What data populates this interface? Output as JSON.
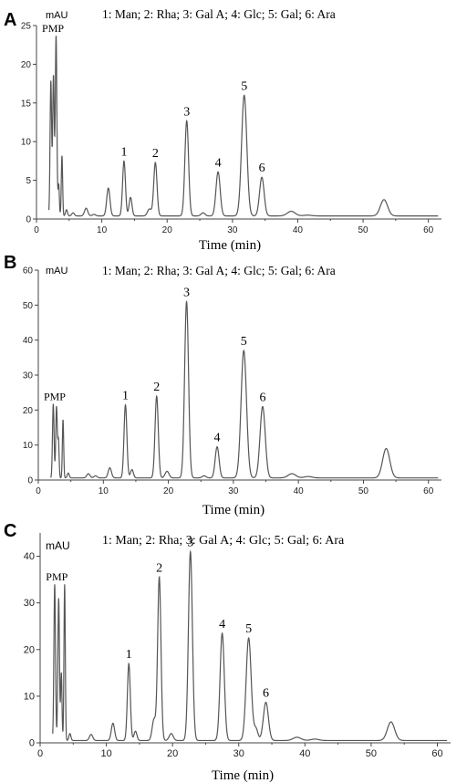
{
  "chart_data": [
    {
      "type": "line",
      "panel_label": "A",
      "ylabel": "mAU",
      "xlabel": "Time (min)",
      "legend_text": "1: Man; 2: Rha; 3: Gal A; 4: Glc; 5: Gal; 6: Ara",
      "xlim": [
        0,
        62
      ],
      "ylim": [
        0,
        25
      ],
      "x_ticks": [
        "0",
        "10",
        "20",
        "30",
        "40",
        "50",
        "60"
      ],
      "y_ticks": [
        "0",
        "5",
        "10",
        "15",
        "20",
        "25"
      ],
      "annotations": [
        {
          "text": "PMP",
          "x": 2.8,
          "y": 23.7
        },
        {
          "text": "1",
          "x": 13.4,
          "y": 7.5
        },
        {
          "text": "2",
          "x": 18.2,
          "y": 7.3
        },
        {
          "text": "3",
          "x": 23.0,
          "y": 12.7
        },
        {
          "text": "4",
          "x": 27.8,
          "y": 6.1
        },
        {
          "text": "5",
          "x": 31.8,
          "y": 16.0
        },
        {
          "text": "6",
          "x": 34.5,
          "y": 5.4
        }
      ],
      "series": [
        {
          "baseline": 0.4,
          "peaks": [
            {
              "x": 2.2,
              "y": 17.8,
              "w": 0.12
            },
            {
              "x": 2.6,
              "y": 18.5,
              "w": 0.12
            },
            {
              "x": 3.0,
              "y": 23.7,
              "w": 0.12
            },
            {
              "x": 3.4,
              "y": 4.5,
              "w": 0.1
            },
            {
              "x": 3.9,
              "y": 8.2,
              "w": 0.1
            },
            {
              "x": 4.6,
              "y": 1.2,
              "w": 0.15
            },
            {
              "x": 5.6,
              "y": 0.8,
              "w": 0.2
            },
            {
              "x": 7.6,
              "y": 1.4,
              "w": 0.25
            },
            {
              "x": 8.8,
              "y": 0.6,
              "w": 0.25
            },
            {
              "x": 11.0,
              "y": 4.0,
              "w": 0.25
            },
            {
              "x": 13.4,
              "y": 7.5,
              "w": 0.22
            },
            {
              "x": 14.4,
              "y": 2.8,
              "w": 0.22
            },
            {
              "x": 17.3,
              "y": 1.3,
              "w": 0.3
            },
            {
              "x": 18.2,
              "y": 7.3,
              "w": 0.25
            },
            {
              "x": 23.0,
              "y": 12.7,
              "w": 0.28
            },
            {
              "x": 25.5,
              "y": 0.8,
              "w": 0.3
            },
            {
              "x": 27.8,
              "y": 6.1,
              "w": 0.32
            },
            {
              "x": 31.8,
              "y": 16.0,
              "w": 0.4
            },
            {
              "x": 34.5,
              "y": 5.4,
              "w": 0.35
            },
            {
              "x": 39.0,
              "y": 1.0,
              "w": 0.6
            },
            {
              "x": 41.5,
              "y": 0.5,
              "w": 0.6
            },
            {
              "x": 53.2,
              "y": 2.5,
              "w": 0.55
            }
          ]
        }
      ]
    },
    {
      "type": "line",
      "panel_label": "B",
      "ylabel": "mAU",
      "xlabel": "Time (min)",
      "legend_text": "1: Man; 2: Rha; 3: Gal A; 4: Glc; 5: Gal; 6: Ara",
      "xlim": [
        0,
        62
      ],
      "ylim": [
        0,
        60
      ],
      "x_ticks": [
        "0",
        "10",
        "20",
        "30",
        "40",
        "50",
        "60"
      ],
      "y_ticks": [
        "0",
        "10",
        "20",
        "30",
        "40",
        "50",
        "60"
      ],
      "annotations": [
        {
          "text": "PMP",
          "x": 2.8,
          "y": 21.8
        },
        {
          "text": "1",
          "x": 13.4,
          "y": 21.5
        },
        {
          "text": "2",
          "x": 18.2,
          "y": 24.0
        },
        {
          "text": "3",
          "x": 22.8,
          "y": 51.0
        },
        {
          "text": "4",
          "x": 27.5,
          "y": 9.5
        },
        {
          "text": "5",
          "x": 31.6,
          "y": 37.0
        },
        {
          "text": "6",
          "x": 34.5,
          "y": 21.0
        }
      ],
      "series": [
        {
          "baseline": 0.6,
          "peaks": [
            {
              "x": 2.3,
              "y": 21.8,
              "w": 0.12
            },
            {
              "x": 2.8,
              "y": 21.0,
              "w": 0.12
            },
            {
              "x": 3.1,
              "y": 11.0,
              "w": 0.1
            },
            {
              "x": 3.8,
              "y": 17.3,
              "w": 0.1
            },
            {
              "x": 4.6,
              "y": 2.0,
              "w": 0.15
            },
            {
              "x": 7.7,
              "y": 1.8,
              "w": 0.25
            },
            {
              "x": 8.8,
              "y": 1.2,
              "w": 0.25
            },
            {
              "x": 11.0,
              "y": 3.5,
              "w": 0.25
            },
            {
              "x": 13.4,
              "y": 21.5,
              "w": 0.22
            },
            {
              "x": 14.4,
              "y": 3.0,
              "w": 0.22
            },
            {
              "x": 18.2,
              "y": 24.0,
              "w": 0.25
            },
            {
              "x": 19.8,
              "y": 2.5,
              "w": 0.3
            },
            {
              "x": 22.8,
              "y": 51.0,
              "w": 0.3
            },
            {
              "x": 25.5,
              "y": 1.2,
              "w": 0.3
            },
            {
              "x": 27.5,
              "y": 9.5,
              "w": 0.3
            },
            {
              "x": 31.6,
              "y": 37.0,
              "w": 0.42
            },
            {
              "x": 34.5,
              "y": 21.0,
              "w": 0.4
            },
            {
              "x": 39.0,
              "y": 1.8,
              "w": 0.6
            },
            {
              "x": 41.5,
              "y": 1.0,
              "w": 0.6
            },
            {
              "x": 53.5,
              "y": 9.0,
              "w": 0.55
            }
          ]
        }
      ]
    },
    {
      "type": "line",
      "panel_label": "C",
      "ylabel": "mAU",
      "xlabel": "Time (min)",
      "legend_text": "1: Man; 2: Rha; 3: Gal A; 4: Glc; 5: Gal; 6: Ara",
      "xlim": [
        0,
        62
      ],
      "ylim": [
        0,
        45
      ],
      "x_ticks": [
        "0",
        "10",
        "20",
        "30",
        "40",
        "50",
        "60"
      ],
      "y_ticks": [
        "0",
        "10",
        "20",
        "30",
        "40"
      ],
      "annotations": [
        {
          "text": "PMP",
          "x": 2.8,
          "y": 34.0
        },
        {
          "text": "1",
          "x": 13.4,
          "y": 17.0
        },
        {
          "text": "2",
          "x": 18.0,
          "y": 35.5
        },
        {
          "text": "3",
          "x": 22.7,
          "y": 41.0
        },
        {
          "text": "4",
          "x": 27.5,
          "y": 23.5
        },
        {
          "text": "5",
          "x": 31.5,
          "y": 22.5
        },
        {
          "text": "6",
          "x": 34.1,
          "y": 8.7
        }
      ],
      "series": [
        {
          "baseline": 0.5,
          "peaks": [
            {
              "x": 2.2,
              "y": 34.0,
              "w": 0.12
            },
            {
              "x": 2.8,
              "y": 31.0,
              "w": 0.12
            },
            {
              "x": 3.2,
              "y": 15.0,
              "w": 0.1
            },
            {
              "x": 3.7,
              "y": 34.0,
              "w": 0.1
            },
            {
              "x": 4.5,
              "y": 2.0,
              "w": 0.15
            },
            {
              "x": 7.7,
              "y": 1.8,
              "w": 0.25
            },
            {
              "x": 11.0,
              "y": 4.2,
              "w": 0.25
            },
            {
              "x": 13.4,
              "y": 17.0,
              "w": 0.22
            },
            {
              "x": 14.4,
              "y": 2.5,
              "w": 0.22
            },
            {
              "x": 17.2,
              "y": 5.0,
              "w": 0.28
            },
            {
              "x": 18.0,
              "y": 35.5,
              "w": 0.25
            },
            {
              "x": 19.8,
              "y": 2.0,
              "w": 0.3
            },
            {
              "x": 22.7,
              "y": 41.0,
              "w": 0.3
            },
            {
              "x": 27.5,
              "y": 23.5,
              "w": 0.32
            },
            {
              "x": 31.5,
              "y": 22.5,
              "w": 0.38
            },
            {
              "x": 32.6,
              "y": 3.0,
              "w": 0.3
            },
            {
              "x": 34.1,
              "y": 8.7,
              "w": 0.38
            },
            {
              "x": 38.8,
              "y": 1.2,
              "w": 0.6
            },
            {
              "x": 41.5,
              "y": 0.8,
              "w": 0.6
            },
            {
              "x": 53.0,
              "y": 4.5,
              "w": 0.55
            }
          ]
        }
      ]
    }
  ],
  "colors": {
    "trace": "#555555",
    "axis": "#444444",
    "text": "#000000"
  }
}
